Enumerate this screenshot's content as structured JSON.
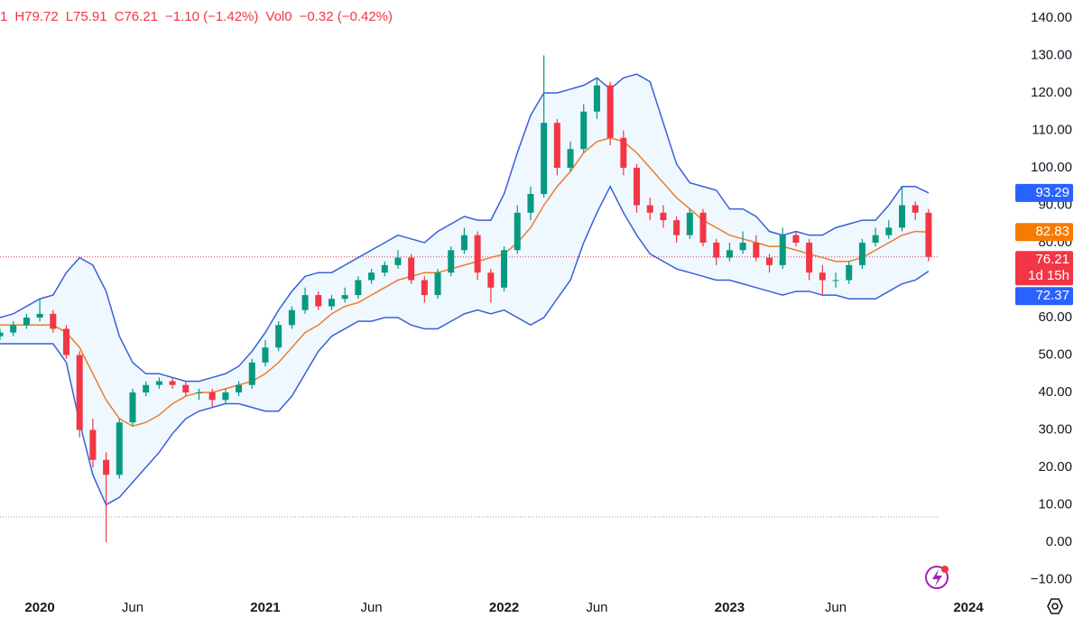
{
  "chart_data": {
    "type": "candlestick",
    "header": [
      "1",
      "H79.72",
      "L75.91",
      "C76.21",
      "−1.10 (−1.42%)",
      "Vol0",
      "−0.32 (−0.42%)"
    ],
    "header_color": "#f23645",
    "categories": [
      null,
      null,
      null,
      "2020",
      null,
      null,
      null,
      null,
      null,
      null,
      "Jun",
      null,
      null,
      null,
      null,
      null,
      null,
      null,
      null,
      null,
      "2021",
      null,
      null,
      null,
      null,
      null,
      null,
      null,
      "Jun",
      null,
      null,
      null,
      null,
      null,
      null,
      null,
      null,
      null,
      "2022",
      null,
      null,
      null,
      null,
      null,
      null,
      "Jun",
      null,
      null,
      null,
      null,
      null,
      null,
      null,
      null,
      null,
      "2023",
      null,
      null,
      null,
      null,
      null,
      null,
      null,
      "Jun",
      null,
      null,
      null,
      null,
      null,
      null,
      null,
      null,
      null,
      "2024"
    ],
    "bold_categories": [
      "2020",
      "2021",
      "2022",
      "2023",
      "2024"
    ],
    "open": [
      55,
      56,
      58,
      60,
      61,
      57,
      50,
      30,
      22,
      18,
      32,
      40,
      42,
      43,
      42,
      40,
      40,
      38,
      40,
      42,
      48,
      52,
      58,
      62,
      66,
      63,
      65,
      66,
      70,
      72,
      74,
      76,
      70,
      66,
      72,
      78,
      82,
      72,
      68,
      78,
      88,
      93,
      112,
      100,
      105,
      115,
      122,
      108,
      100,
      90,
      88,
      86,
      82,
      88,
      80,
      76,
      78,
      80,
      76,
      74,
      82,
      80,
      72,
      70,
      70,
      74,
      80,
      82,
      84,
      90,
      88,
      null,
      null,
      null
    ],
    "high": [
      57,
      59,
      61,
      65,
      62,
      58,
      51,
      33,
      24,
      33,
      41,
      43,
      44,
      44,
      43,
      41,
      41,
      41,
      43,
      49,
      54,
      59,
      63,
      68,
      67,
      66,
      68,
      71,
      73,
      75,
      78,
      77,
      71,
      73,
      79,
      84,
      83,
      73,
      79,
      90,
      95,
      130,
      113,
      107,
      117,
      124,
      123,
      110,
      101,
      92,
      90,
      87,
      89,
      89,
      81,
      80,
      83,
      82,
      77,
      84,
      83,
      81,
      74,
      72,
      75,
      81,
      84,
      86,
      95,
      91,
      89,
      null,
      null,
      null
    ],
    "low": [
      54,
      55,
      57,
      59,
      56,
      49,
      28,
      20,
      0,
      17,
      31,
      39,
      41,
      41,
      39,
      38,
      36,
      37,
      39,
      41,
      47,
      51,
      57,
      61,
      62,
      62,
      64,
      65,
      69,
      71,
      73,
      69,
      64,
      65,
      71,
      77,
      70,
      64,
      67,
      77,
      86,
      92,
      98,
      99,
      104,
      113,
      106,
      98,
      88,
      86,
      84,
      80,
      81,
      79,
      74,
      75,
      77,
      75,
      72,
      73,
      79,
      70,
      66,
      68,
      69,
      73,
      79,
      81,
      83,
      86,
      75,
      null,
      null,
      null
    ],
    "close": [
      56,
      58,
      60,
      61,
      57,
      50,
      30,
      22,
      18,
      32,
      40,
      42,
      43,
      42,
      40,
      40,
      38,
      40,
      42,
      48,
      52,
      58,
      62,
      66,
      63,
      65,
      66,
      70,
      72,
      74,
      76,
      70,
      66,
      72,
      78,
      82,
      72,
      68,
      78,
      88,
      93,
      112,
      100,
      105,
      115,
      122,
      108,
      100,
      90,
      88,
      86,
      82,
      88,
      80,
      76,
      78,
      80,
      76,
      74,
      82,
      80,
      72,
      70,
      70,
      74,
      80,
      82,
      84,
      90,
      88,
      76.21,
      null,
      null,
      null
    ],
    "up_color": "#089981",
    "down_color": "#f23645",
    "bands": [
      {
        "color": "#3a5fd9",
        "values": [
          60,
          61,
          63,
          65,
          66,
          72,
          76,
          74,
          67,
          55,
          48,
          45,
          45,
          44,
          43,
          43,
          44,
          45,
          47,
          51,
          56,
          62,
          67,
          71,
          72,
          72,
          74,
          76,
          78,
          80,
          82,
          81,
          80,
          83,
          85,
          87,
          86,
          86,
          93,
          104,
          114,
          120,
          120,
          121,
          122,
          124,
          121,
          124,
          125,
          123,
          112,
          101,
          96,
          95,
          94,
          89,
          89,
          87,
          83,
          82,
          83,
          82,
          82,
          84,
          85,
          86,
          86,
          90,
          95,
          95,
          93.29,
          null,
          null,
          null
        ]
      },
      {
        "color": "#ef7c2a",
        "values": [
          58,
          58,
          58,
          58,
          58,
          56,
          52,
          45,
          38,
          33,
          31,
          32,
          34,
          37,
          39,
          40,
          40,
          41,
          42,
          43,
          45,
          48,
          52,
          56,
          58,
          61,
          63,
          64,
          66,
          68,
          70,
          71,
          72,
          72,
          73,
          74,
          75,
          76,
          77,
          80,
          84,
          90,
          95,
          99,
          104,
          107,
          108,
          107,
          104,
          100,
          96,
          92,
          89,
          86,
          84,
          82,
          81,
          80,
          79,
          79,
          78,
          77,
          76,
          75,
          75,
          76,
          78,
          80,
          82,
          83,
          82.83,
          null,
          null,
          null
        ]
      },
      {
        "color": "#3a5fd9",
        "values": [
          53,
          53,
          53,
          53,
          53,
          48,
          32,
          18,
          10,
          12,
          16,
          20,
          24,
          29,
          33,
          35,
          36,
          37,
          37,
          36,
          35,
          35,
          39,
          45,
          51,
          55,
          57,
          59,
          59,
          60,
          60,
          58,
          57,
          57,
          59,
          61,
          62,
          61,
          62,
          60,
          58,
          60,
          65,
          70,
          80,
          88,
          95,
          88,
          82,
          77,
          75,
          73,
          72,
          71,
          70,
          70,
          69,
          68,
          67,
          66,
          67,
          67,
          66,
          66,
          65,
          65,
          65,
          67,
          69,
          70,
          72.37,
          null,
          null,
          null
        ]
      }
    ],
    "band_fill": "rgba(33,150,243,0.07)",
    "reference_lines": [
      {
        "value": 76.21,
        "color": "#f23645"
      },
      {
        "value": 6.75,
        "color": "#4fb5a0"
      }
    ],
    "price_tags": [
      {
        "value": 93.29,
        "color": "#2962ff"
      },
      {
        "value": 82.83,
        "color": "#f57c00"
      },
      {
        "value": 76.21,
        "color": "#f23645",
        "sub": "1d 15h"
      },
      {
        "value": 72.37,
        "color": "#2962ff"
      }
    ],
    "ylim": [
      -14.2,
      144.8
    ],
    "yticks": [
      {
        "value": -10,
        "label": "−10.00"
      },
      {
        "value": 0,
        "label": "0.00"
      },
      {
        "value": 10,
        "label": "10.00"
      },
      {
        "value": 20,
        "label": "20.00"
      },
      {
        "value": 30,
        "label": "30.00"
      },
      {
        "value": 40,
        "label": "40.00"
      },
      {
        "value": 50,
        "label": "50.00"
      },
      {
        "value": 60,
        "label": "60.00"
      },
      {
        "value": 70,
        "label": "70.00"
      },
      {
        "value": 80,
        "label": "80.00"
      },
      {
        "value": 90,
        "label": "90.00"
      },
      {
        "value": 100,
        "label": "100.00"
      },
      {
        "value": 110,
        "label": "110.00"
      },
      {
        "value": 120,
        "label": "120.00"
      },
      {
        "value": 130,
        "label": "130.00"
      },
      {
        "value": 140,
        "label": "140.00"
      }
    ]
  }
}
